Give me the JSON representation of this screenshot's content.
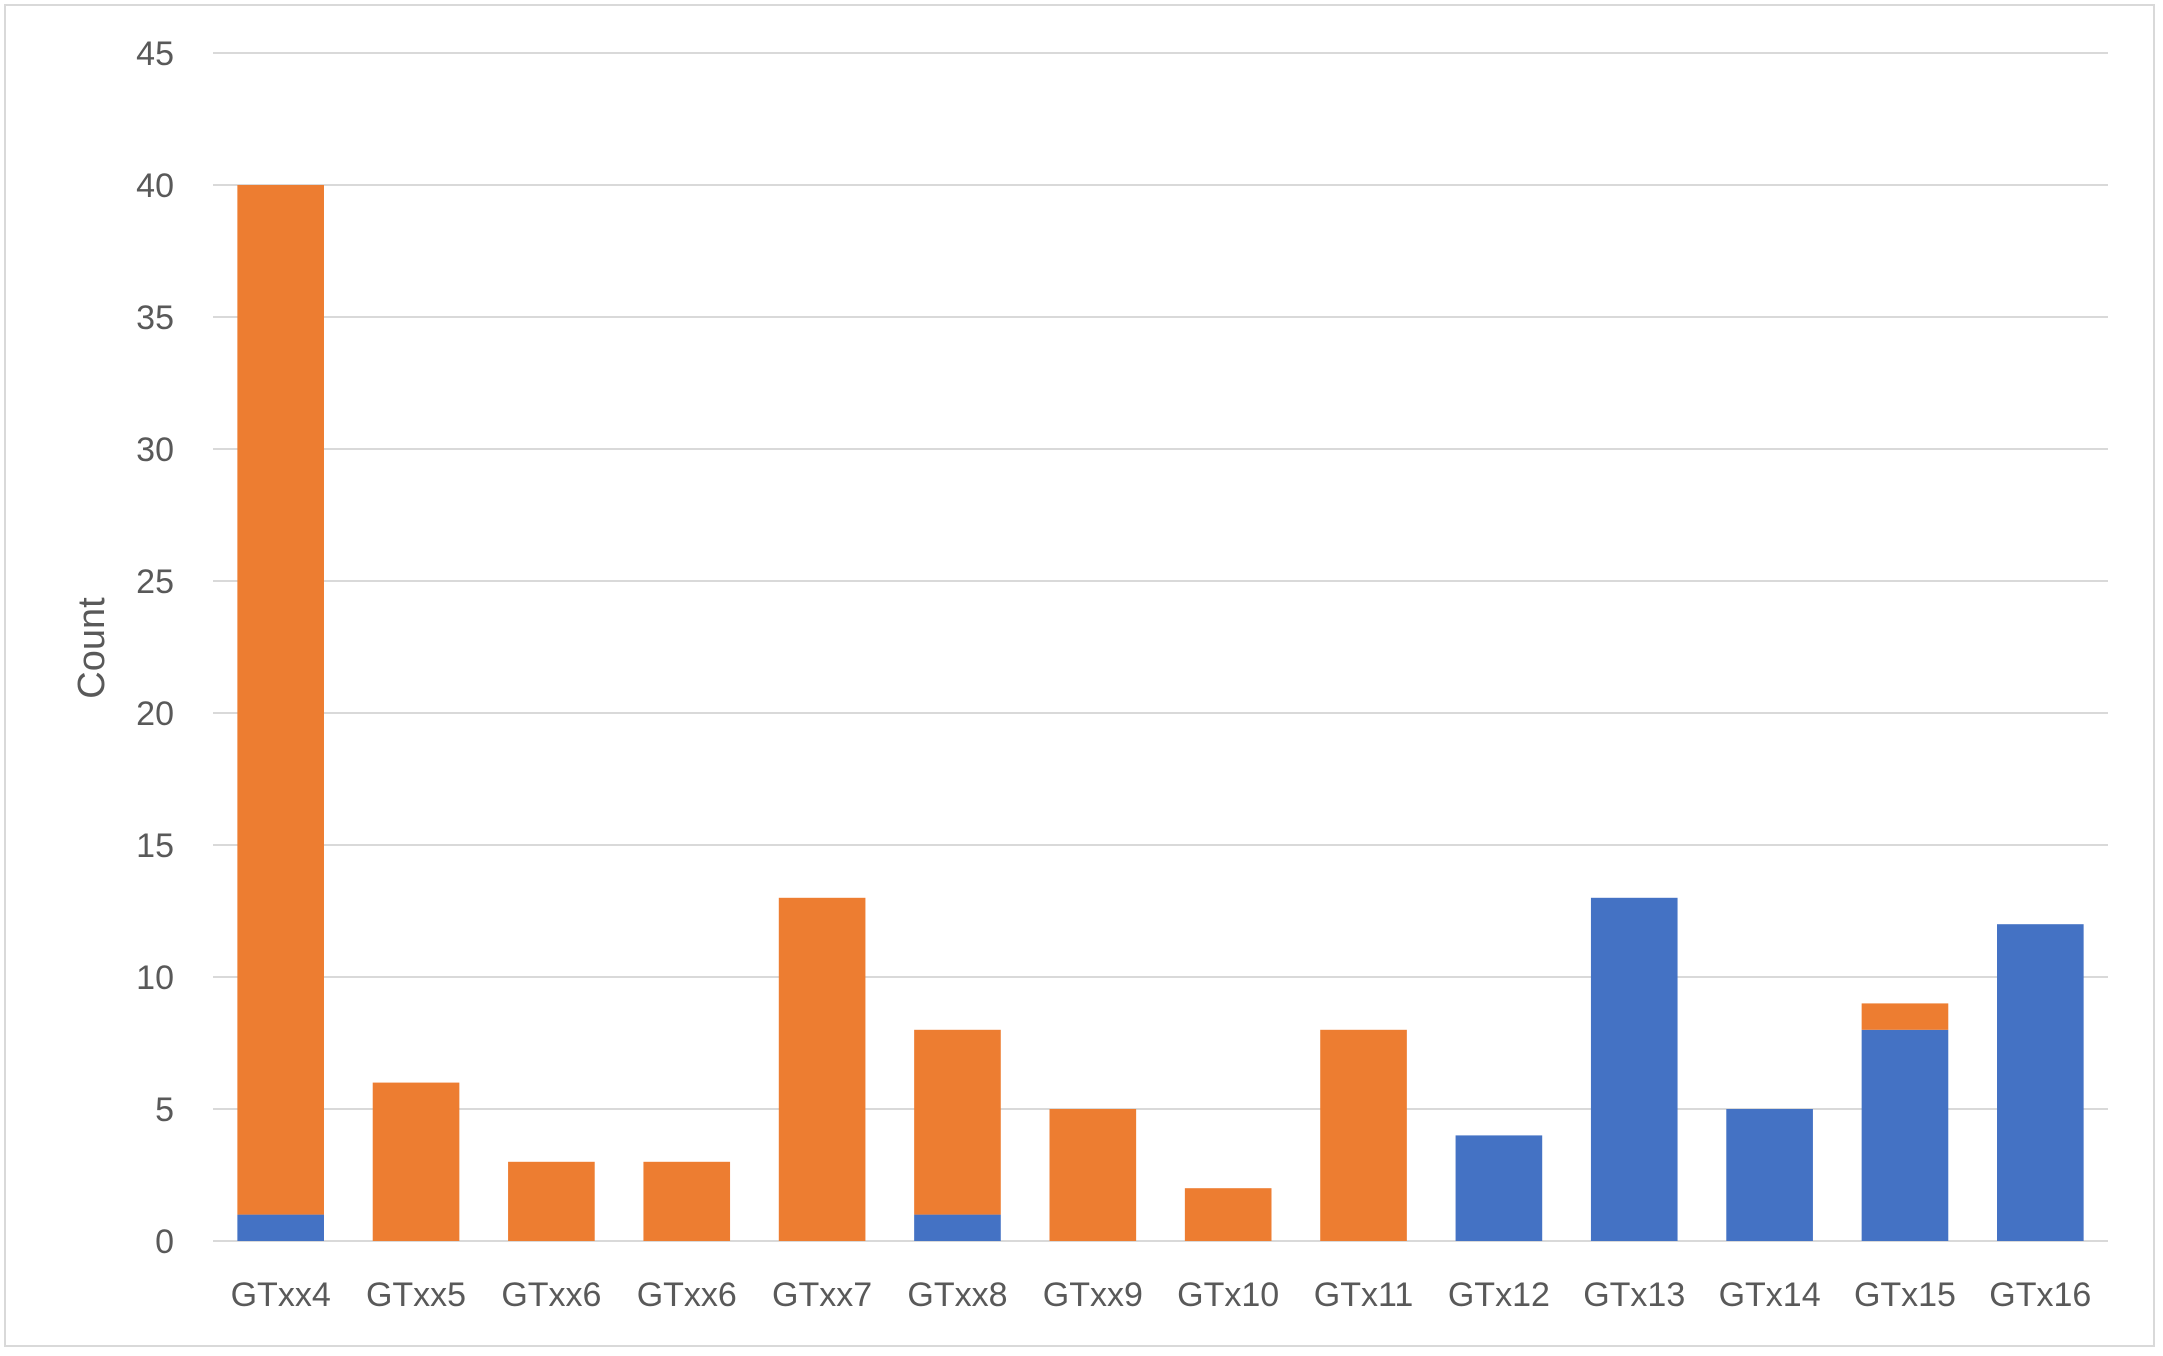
{
  "chart_data": {
    "type": "bar",
    "stacked": true,
    "title": "",
    "xlabel": "",
    "ylabel": "Count",
    "ylim": [
      0,
      45
    ],
    "yticks": [
      0,
      5,
      10,
      15,
      20,
      25,
      30,
      35,
      40,
      45
    ],
    "grid": true,
    "legend": "none",
    "categories": [
      "GTxx4",
      "GTxx5",
      "GTxx6",
      "GTxx6",
      "GTxx7",
      "GTxx8",
      "GTxx9",
      "GTx10",
      "GTx11",
      "GTx12",
      "GTx13",
      "GTx14",
      "GTx15",
      "GTx16"
    ],
    "series": [
      {
        "color": "#4472C4",
        "values": [
          1,
          0,
          0,
          0,
          0,
          1,
          0,
          0,
          0,
          4,
          13,
          5,
          8,
          12
        ]
      },
      {
        "color": "#ED7D31",
        "values": [
          39,
          6,
          3,
          3,
          13,
          7,
          5,
          2,
          8,
          0,
          0,
          0,
          1,
          0
        ]
      }
    ],
    "gridline_color": "#d9d9d9"
  }
}
